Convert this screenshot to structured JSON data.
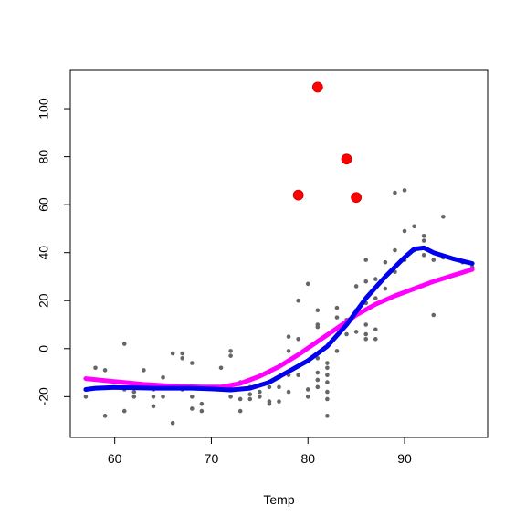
{
  "chart_data": {
    "type": "scatter",
    "xlabel": "Temp",
    "ylabel": "",
    "xlim": [
      55.4,
      98.6
    ],
    "ylim": [
      -37,
      116
    ],
    "x_ticks": [
      60,
      70,
      80,
      90
    ],
    "y_ticks": [
      -20,
      0,
      20,
      40,
      60,
      80,
      100
    ],
    "grid": false,
    "legend": "none",
    "colors": {
      "points": "#666666",
      "highlight": "#ff0000",
      "smooth_blue": "#0000ee",
      "smooth_magenta": "#ff00ff"
    },
    "points": [
      {
        "x": 57,
        "y": -20
      },
      {
        "x": 58,
        "y": -8
      },
      {
        "x": 59,
        "y": -28
      },
      {
        "x": 59,
        "y": -9
      },
      {
        "x": 61,
        "y": 2
      },
      {
        "x": 61,
        "y": -17
      },
      {
        "x": 61,
        "y": -26
      },
      {
        "x": 62,
        "y": -18
      },
      {
        "x": 62,
        "y": -20
      },
      {
        "x": 63,
        "y": -9
      },
      {
        "x": 64,
        "y": -17
      },
      {
        "x": 64,
        "y": -24
      },
      {
        "x": 64,
        "y": -20
      },
      {
        "x": 65,
        "y": -12
      },
      {
        "x": 65,
        "y": -20
      },
      {
        "x": 66,
        "y": -2
      },
      {
        "x": 66,
        "y": -31
      },
      {
        "x": 66,
        "y": -16
      },
      {
        "x": 67,
        "y": -2
      },
      {
        "x": 67,
        "y": -4
      },
      {
        "x": 67,
        "y": -17
      },
      {
        "x": 68,
        "y": -6
      },
      {
        "x": 68,
        "y": -20
      },
      {
        "x": 68,
        "y": -25
      },
      {
        "x": 69,
        "y": -16
      },
      {
        "x": 69,
        "y": -23
      },
      {
        "x": 69,
        "y": -26
      },
      {
        "x": 71,
        "y": -17
      },
      {
        "x": 71,
        "y": -8
      },
      {
        "x": 72,
        "y": -1
      },
      {
        "x": 72,
        "y": -3
      },
      {
        "x": 72,
        "y": -16
      },
      {
        "x": 72,
        "y": -20
      },
      {
        "x": 73,
        "y": -14
      },
      {
        "x": 73,
        "y": -21
      },
      {
        "x": 73,
        "y": -26
      },
      {
        "x": 74,
        "y": -19
      },
      {
        "x": 74,
        "y": -16
      },
      {
        "x": 74,
        "y": -21
      },
      {
        "x": 75,
        "y": -20
      },
      {
        "x": 75,
        "y": -18
      },
      {
        "x": 76,
        "y": -10
      },
      {
        "x": 76,
        "y": -16
      },
      {
        "x": 76,
        "y": -22
      },
      {
        "x": 76,
        "y": -23
      },
      {
        "x": 77,
        "y": -12
      },
      {
        "x": 77,
        "y": -16
      },
      {
        "x": 77,
        "y": -22
      },
      {
        "x": 78,
        "y": 5
      },
      {
        "x": 78,
        "y": -1
      },
      {
        "x": 78,
        "y": -11
      },
      {
        "x": 78,
        "y": -18
      },
      {
        "x": 79,
        "y": 20
      },
      {
        "x": 79,
        "y": 4
      },
      {
        "x": 79,
        "y": -11
      },
      {
        "x": 80,
        "y": 27
      },
      {
        "x": 80,
        "y": -17
      },
      {
        "x": 80,
        "y": -20
      },
      {
        "x": 81,
        "y": 16
      },
      {
        "x": 81,
        "y": 10
      },
      {
        "x": 81,
        "y": 9
      },
      {
        "x": 81,
        "y": -4
      },
      {
        "x": 81,
        "y": -10
      },
      {
        "x": 81,
        "y": -13
      },
      {
        "x": 81,
        "y": -16
      },
      {
        "x": 82,
        "y": -6
      },
      {
        "x": 82,
        "y": -8
      },
      {
        "x": 82,
        "y": -11
      },
      {
        "x": 82,
        "y": -14
      },
      {
        "x": 82,
        "y": -18
      },
      {
        "x": 82,
        "y": -21
      },
      {
        "x": 82,
        "y": -28
      },
      {
        "x": 83,
        "y": 17
      },
      {
        "x": 83,
        "y": 13
      },
      {
        "x": 83,
        "y": -1
      },
      {
        "x": 84,
        "y": 12
      },
      {
        "x": 84,
        "y": 6
      },
      {
        "x": 85,
        "y": 26
      },
      {
        "x": 85,
        "y": 16
      },
      {
        "x": 85,
        "y": 7
      },
      {
        "x": 86,
        "y": 37
      },
      {
        "x": 86,
        "y": 28
      },
      {
        "x": 86,
        "y": 19
      },
      {
        "x": 86,
        "y": 10
      },
      {
        "x": 86,
        "y": 6
      },
      {
        "x": 86,
        "y": 4
      },
      {
        "x": 87,
        "y": 29
      },
      {
        "x": 87,
        "y": 21
      },
      {
        "x": 87,
        "y": 8
      },
      {
        "x": 87,
        "y": 4
      },
      {
        "x": 88,
        "y": 36
      },
      {
        "x": 88,
        "y": 25
      },
      {
        "x": 89,
        "y": 41
      },
      {
        "x": 89,
        "y": 32
      },
      {
        "x": 89,
        "y": 65
      },
      {
        "x": 90,
        "y": 66
      },
      {
        "x": 90,
        "y": 49
      },
      {
        "x": 90,
        "y": 37
      },
      {
        "x": 91,
        "y": 51
      },
      {
        "x": 91,
        "y": 41
      },
      {
        "x": 92,
        "y": 47
      },
      {
        "x": 92,
        "y": 45
      },
      {
        "x": 92,
        "y": 39
      },
      {
        "x": 93,
        "y": 14
      },
      {
        "x": 93,
        "y": 37
      },
      {
        "x": 94,
        "y": 55
      },
      {
        "x": 94,
        "y": 38
      },
      {
        "x": 96,
        "y": 36
      },
      {
        "x": 97,
        "y": 34
      }
    ],
    "highlighted_points": [
      {
        "x": 79,
        "y": 64
      },
      {
        "x": 81,
        "y": 109
      },
      {
        "x": 84,
        "y": 79
      },
      {
        "x": 85,
        "y": 63
      }
    ],
    "smooth_blue": [
      {
        "x": 57,
        "y": -17
      },
      {
        "x": 58,
        "y": -16.5
      },
      {
        "x": 60,
        "y": -16.2
      },
      {
        "x": 62,
        "y": -16.3
      },
      {
        "x": 64,
        "y": -16.5
      },
      {
        "x": 66,
        "y": -16.5
      },
      {
        "x": 68,
        "y": -16.5
      },
      {
        "x": 70,
        "y": -16.8
      },
      {
        "x": 72,
        "y": -17.2
      },
      {
        "x": 74,
        "y": -16.5
      },
      {
        "x": 76,
        "y": -14
      },
      {
        "x": 78,
        "y": -9.5
      },
      {
        "x": 80,
        "y": -5
      },
      {
        "x": 82,
        "y": 1
      },
      {
        "x": 84,
        "y": 10
      },
      {
        "x": 86,
        "y": 21
      },
      {
        "x": 88,
        "y": 30
      },
      {
        "x": 90,
        "y": 38
      },
      {
        "x": 91,
        "y": 41.5
      },
      {
        "x": 92,
        "y": 42
      },
      {
        "x": 93,
        "y": 40
      },
      {
        "x": 95,
        "y": 37.5
      },
      {
        "x": 97,
        "y": 35.5
      }
    ],
    "smooth_magenta": [
      {
        "x": 57,
        "y": -12.5
      },
      {
        "x": 60,
        "y": -13.7
      },
      {
        "x": 63,
        "y": -14.9
      },
      {
        "x": 66,
        "y": -15.6
      },
      {
        "x": 69,
        "y": -16
      },
      {
        "x": 71,
        "y": -16
      },
      {
        "x": 73,
        "y": -14.5
      },
      {
        "x": 75,
        "y": -11.5
      },
      {
        "x": 77,
        "y": -7.5
      },
      {
        "x": 79,
        "y": -2.5
      },
      {
        "x": 81,
        "y": 3
      },
      {
        "x": 83,
        "y": 8.5
      },
      {
        "x": 85,
        "y": 14
      },
      {
        "x": 87,
        "y": 18.5
      },
      {
        "x": 89,
        "y": 22
      },
      {
        "x": 91,
        "y": 25
      },
      {
        "x": 93,
        "y": 28
      },
      {
        "x": 95,
        "y": 30.5
      },
      {
        "x": 97,
        "y": 33
      }
    ]
  }
}
